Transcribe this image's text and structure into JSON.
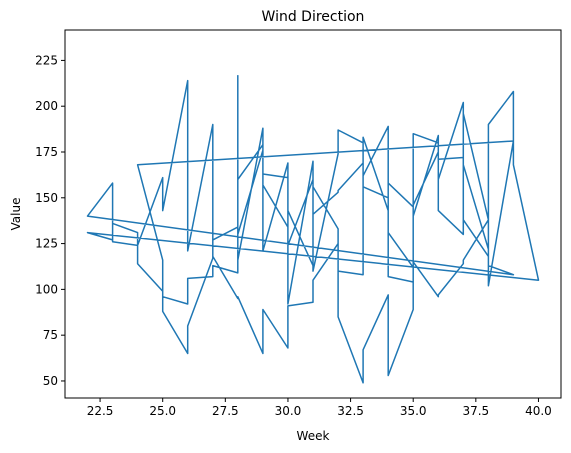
{
  "chart_data": {
    "type": "line",
    "title": "Wind Direction",
    "xlabel": "Week",
    "ylabel": "Value",
    "xlim": [
      21.1,
      40.9
    ],
    "ylim": [
      40.7,
      241.6
    ],
    "xticks": [
      22.5,
      25.0,
      27.5,
      30.0,
      32.5,
      35.0,
      37.5,
      40.0
    ],
    "yticks": [
      50,
      75,
      100,
      125,
      150,
      175,
      200,
      225
    ],
    "grid": false,
    "series": [
      {
        "color": "#1f77b4",
        "x": [
          28,
          28,
          29,
          29,
          30,
          30,
          31,
          31,
          32,
          32,
          33,
          33,
          34,
          34,
          35,
          35,
          36,
          36,
          37,
          37,
          38,
          38,
          39,
          39,
          40,
          22,
          23,
          23,
          24,
          24,
          25,
          25,
          26,
          26,
          27,
          27,
          28,
          28,
          29,
          29,
          30,
          30,
          31,
          31,
          32,
          32,
          33,
          33,
          34,
          34,
          35,
          35,
          36,
          36,
          37,
          37,
          38,
          38,
          39,
          24,
          25,
          25,
          26,
          26,
          27,
          27,
          28,
          28,
          29,
          29,
          30,
          30,
          31,
          31,
          32,
          32,
          33,
          33,
          34,
          34,
          35,
          35,
          36,
          36,
          37,
          37,
          38,
          38,
          39,
          22,
          23,
          23,
          24,
          24,
          25,
          25,
          26,
          26,
          27,
          27,
          28,
          28,
          29,
          29,
          30,
          30,
          31,
          31,
          32,
          32,
          33,
          33,
          34,
          34,
          35,
          35,
          36,
          36,
          37,
          37,
          38
        ],
        "y": [
          217,
          116,
          188,
          121,
          169,
          92,
          170,
          110,
          174,
          187,
          180,
          156,
          150,
          158,
          145,
          140,
          184,
          160,
          202,
          168,
          122,
          190,
          208,
          168,
          105,
          131,
          127,
          136,
          131,
          124,
          161,
          143,
          214,
          121,
          190,
          118,
          95,
          96,
          65,
          89,
          68,
          91,
          93,
          105,
          125,
          85,
          49,
          67,
          97,
          53,
          89,
          185,
          180,
          171,
          172,
          138,
          118,
          102,
          181,
          168,
          116,
          96,
          92,
          106,
          107,
          113,
          109,
          160,
          179,
          163,
          161,
          143,
          113,
          141,
          153,
          154,
          169,
          183,
          143,
          131,
          112,
          146,
          175,
          143,
          130,
          196,
          138,
          113,
          108,
          140,
          158,
          126,
          124,
          114,
          99,
          88,
          65,
          80,
          117,
          127,
          134,
          130,
          176,
          157,
          134,
          124,
          160,
          156,
          133,
          110,
          108,
          162,
          189,
          107,
          104,
          115,
          96,
          97,
          114,
          116,
          138
        ]
      }
    ]
  }
}
